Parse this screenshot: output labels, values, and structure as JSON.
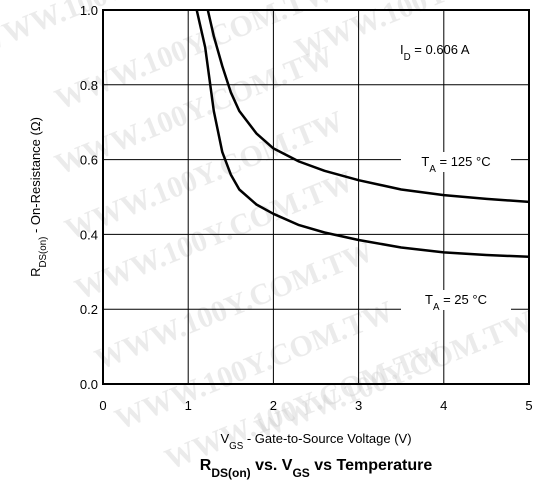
{
  "chart_data": {
    "type": "line",
    "title_parts": [
      {
        "text": "R",
        "sub": false
      },
      {
        "text": "DS(on)",
        "sub": true
      },
      {
        "text": " vs. V",
        "sub": false
      },
      {
        "text": "GS",
        "sub": true
      },
      {
        "text": " vs Temperature",
        "sub": false
      }
    ],
    "xlabel_parts": [
      {
        "text": "V",
        "sub": false
      },
      {
        "text": "GS",
        "sub": true
      },
      {
        "text": " - Gate-to-Source Voltage (V)",
        "sub": false
      }
    ],
    "ylabel_parts": [
      {
        "text": "R",
        "sub": false
      },
      {
        "text": "DS(on)",
        "sub": true
      },
      {
        "text": " - On-Resistance (Ω)",
        "sub": false
      }
    ],
    "xlim": [
      0,
      5
    ],
    "ylim": [
      0,
      1.0
    ],
    "xticks": [
      "0",
      "1",
      "2",
      "3",
      "4",
      "5"
    ],
    "yticks": [
      "0.0",
      "0.2",
      "0.4",
      "0.6",
      "0.8",
      "1.0"
    ],
    "grid": true,
    "annotation_id": [
      {
        "text": "I",
        "sub": false
      },
      {
        "text": "D",
        "sub": true
      },
      {
        "text": " = 0.606 A",
        "sub": false
      }
    ],
    "series": [
      {
        "label_parts": [
          {
            "text": "T",
            "sub": false
          },
          {
            "text": "A",
            "sub": true
          },
          {
            "text": " = 125 °C",
            "sub": false
          }
        ],
        "x": [
          1.23,
          1.3,
          1.4,
          1.5,
          1.6,
          1.8,
          2.0,
          2.3,
          2.6,
          3.0,
          3.5,
          4.0,
          4.5,
          5.0
        ],
        "y": [
          1.0,
          0.93,
          0.85,
          0.78,
          0.73,
          0.67,
          0.63,
          0.595,
          0.57,
          0.545,
          0.52,
          0.505,
          0.495,
          0.487
        ]
      },
      {
        "label_parts": [
          {
            "text": "T",
            "sub": false
          },
          {
            "text": "A",
            "sub": true
          },
          {
            "text": " = 25 °C",
            "sub": false
          }
        ],
        "x": [
          1.1,
          1.2,
          1.3,
          1.4,
          1.5,
          1.6,
          1.8,
          2.0,
          2.3,
          2.6,
          3.0,
          3.5,
          4.0,
          4.5,
          5.0
        ],
        "y": [
          1.0,
          0.9,
          0.73,
          0.62,
          0.56,
          0.52,
          0.48,
          0.455,
          0.425,
          0.405,
          0.385,
          0.365,
          0.352,
          0.345,
          0.34
        ]
      }
    ],
    "watermark": "WWW.100Y.COM.TW"
  }
}
